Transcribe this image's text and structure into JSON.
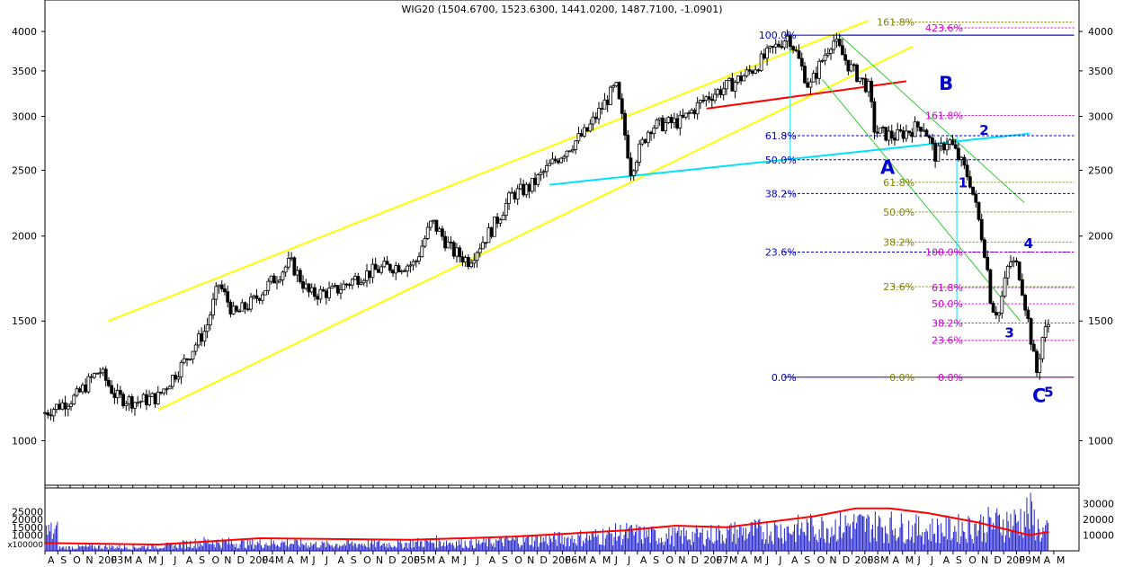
{
  "chart_data": {
    "type": "candlestick",
    "title": "WIG20 (1504.6700, 1523.6300, 1441.0200, 1487.7100, -1.0901)",
    "y_scale": "log",
    "ylim": [
      860,
      4450
    ],
    "y_ticks": [
      4000,
      3500,
      3000,
      2500,
      2000,
      1500,
      1000
    ],
    "x_range": [
      "2002-08-01",
      "2009-06-01"
    ],
    "month_labels": [
      "A",
      "S",
      "O",
      "N",
      "2003",
      "F",
      "M",
      "A",
      "M",
      "J",
      "J",
      "A",
      "S",
      "O",
      "N",
      "D",
      "2004",
      "F",
      "M",
      "A",
      "M",
      "J",
      "J",
      "A",
      "S",
      "O",
      "N",
      "D",
      "2005",
      "F",
      "M",
      "A",
      "M",
      "J",
      "J",
      "A",
      "S",
      "O",
      "N",
      "D",
      "2006",
      "F",
      "M",
      "A",
      "M",
      "J",
      "J",
      "A",
      "S",
      "O",
      "N",
      "D",
      "2007",
      "F",
      "M",
      "A",
      "M",
      "J",
      "J",
      "A",
      "S",
      "O",
      "N",
      "D",
      "2008",
      "F",
      "M",
      "A",
      "M",
      "J",
      "J",
      "A",
      "S",
      "O",
      "N",
      "D",
      "2009",
      "F",
      "M",
      "A",
      "M"
    ],
    "price_path": [
      [
        "2002-08-01",
        1100
      ],
      [
        "2002-10-15",
        1160
      ],
      [
        "2002-12-10",
        1270
      ],
      [
        "2003-01-20",
        1160
      ],
      [
        "2003-03-10",
        1140
      ],
      [
        "2003-05-01",
        1160
      ],
      [
        "2003-07-01",
        1300
      ],
      [
        "2003-08-25",
        1460
      ],
      [
        "2003-09-25",
        1700
      ],
      [
        "2003-11-01",
        1530
      ],
      [
        "2003-12-15",
        1600
      ],
      [
        "2004-02-01",
        1720
      ],
      [
        "2004-03-15",
        1830
      ],
      [
        "2004-05-01",
        1640
      ],
      [
        "2004-07-01",
        1660
      ],
      [
        "2004-09-01",
        1750
      ],
      [
        "2004-11-01",
        1800
      ],
      [
        "2005-01-10",
        1820
      ],
      [
        "2005-02-20",
        2100
      ],
      [
        "2005-04-10",
        1900
      ],
      [
        "2005-05-20",
        1840
      ],
      [
        "2005-07-15",
        2050
      ],
      [
        "2005-09-01",
        2300
      ],
      [
        "2005-10-15",
        2360
      ],
      [
        "2006-01-15",
        2700
      ],
      [
        "2006-03-01",
        2850
      ],
      [
        "2006-05-10",
        3320
      ],
      [
        "2006-06-15",
        2500
      ],
      [
        "2006-08-01",
        2900
      ],
      [
        "2006-10-15",
        2950
      ],
      [
        "2006-12-15",
        3200
      ],
      [
        "2007-02-15",
        3350
      ],
      [
        "2007-04-01",
        3500
      ],
      [
        "2007-07-01",
        3950
      ],
      [
        "2007-08-20",
        3300
      ],
      [
        "2007-10-15",
        3900
      ],
      [
        "2007-11-25",
        3550
      ],
      [
        "2008-01-10",
        3300
      ],
      [
        "2008-01-25",
        2850
      ],
      [
        "2008-03-15",
        2800
      ],
      [
        "2008-05-20",
        2920
      ],
      [
        "2008-06-20",
        2620
      ],
      [
        "2008-07-20",
        2780
      ],
      [
        "2008-09-10",
        2420
      ],
      [
        "2008-10-20",
        1850
      ],
      [
        "2008-11-01",
        1580
      ],
      [
        "2008-11-20",
        1540
      ],
      [
        "2008-12-15",
        1840
      ],
      [
        "2009-01-05",
        1800
      ],
      [
        "2009-02-18",
        1250
      ],
      [
        "2009-03-05",
        1420
      ],
      [
        "2009-03-20",
        1488
      ]
    ],
    "lines": [
      {
        "name": "channel-upper",
        "color": "#ffff00",
        "points": [
          [
            "2003-01-01",
            1500
          ],
          [
            "2008-01-10",
            4150
          ]
        ]
      },
      {
        "name": "channel-lower",
        "color": "#ffff00",
        "points": [
          [
            "2003-05-01",
            1110
          ],
          [
            "2008-04-25",
            3800
          ]
        ]
      },
      {
        "name": "support-line",
        "color": "#00e0ff",
        "points": [
          [
            "2005-12-01",
            2380
          ],
          [
            "2009-02-01",
            2830
          ]
        ]
      },
      {
        "name": "neckline",
        "color": "#ff0000",
        "points": [
          [
            "2006-12-15",
            3080
          ],
          [
            "2008-04-10",
            3380
          ]
        ]
      }
    ],
    "fib_sets": [
      {
        "name": "blue-retracement",
        "color": "#0000cc",
        "labels": [
          "100.0%",
          "61.8%",
          "50.0%",
          "38.2%",
          "23.6%",
          "0.0%"
        ],
        "values": [
          3950,
          2810,
          2590,
          2310,
          1895,
          1240
        ]
      },
      {
        "name": "olive-extension",
        "color": "#808000",
        "labels": [
          "161.8%",
          "61.8%",
          "50.0%",
          "38.2%",
          "23.6%",
          "0.0%"
        ],
        "values": [
          4130,
          2400,
          2170,
          1960,
          1685,
          1240
        ]
      },
      {
        "name": "magenta-extension",
        "color": "#cc00cc",
        "labels": [
          "423.6%",
          "161.8%",
          "100.0%",
          "61.8%",
          "50.0%",
          "38.2%",
          "23.6%",
          "0.0%"
        ],
        "values": [
          4050,
          3010,
          1895,
          1680,
          1590,
          1490,
          1405,
          1240
        ]
      }
    ],
    "wave_labels": [
      {
        "label": "A",
        "date": "2008-02-25",
        "value": 2470,
        "size": "big"
      },
      {
        "label": "B",
        "date": "2008-07-15",
        "value": 3280,
        "size": "big"
      },
      {
        "label": "C",
        "date": "2009-02-25",
        "value": 1140,
        "size": "big"
      },
      {
        "label": "5",
        "date": "2009-03-20",
        "value": 1160,
        "size": "small"
      },
      {
        "label": "1",
        "date": "2008-08-25",
        "value": 2360,
        "size": "small"
      },
      {
        "label": "2",
        "date": "2008-10-15",
        "value": 2820,
        "size": "small"
      },
      {
        "label": "3",
        "date": "2008-12-15",
        "value": 1420,
        "size": "small"
      },
      {
        "label": "4",
        "date": "2009-01-30",
        "value": 1920,
        "size": "small"
      }
    ],
    "volume": {
      "unit_label": "x100000",
      "y_ticks_left": [
        "25000",
        "20000",
        "15000",
        "10000"
      ],
      "y_ticks_right": [
        "30000",
        "20000",
        "10000"
      ],
      "ylim": [
        0,
        40000
      ],
      "avg_path": [
        [
          "2002-08-01",
          5000
        ],
        [
          "2003-05-01",
          4000
        ],
        [
          "2004-01-01",
          8000
        ],
        [
          "2005-01-01",
          7000
        ],
        [
          "2005-09-01",
          9000
        ],
        [
          "2006-06-01",
          13000
        ],
        [
          "2006-10-01",
          16000
        ],
        [
          "2007-02-01",
          15000
        ],
        [
          "2007-09-01",
          22000
        ],
        [
          "2007-12-10",
          27000
        ],
        [
          "2008-03-01",
          27000
        ],
        [
          "2008-06-01",
          24000
        ],
        [
          "2008-10-01",
          18000
        ],
        [
          "2009-02-01",
          10000
        ],
        [
          "2009-03-20",
          12000
        ]
      ],
      "bars": [
        [
          "2002-09",
          3000
        ],
        [
          "2002-12",
          4000
        ],
        [
          "2003-03",
          3500
        ],
        [
          "2003-06",
          5000
        ],
        [
          "2003-09",
          9000
        ],
        [
          "2003-12",
          7000
        ],
        [
          "2004-03",
          8000
        ],
        [
          "2004-06",
          6000
        ],
        [
          "2004-09",
          7000
        ],
        [
          "2004-12",
          6500
        ],
        [
          "2005-03",
          9000
        ],
        [
          "2005-06",
          7000
        ],
        [
          "2005-09",
          10000
        ],
        [
          "2005-12",
          11000
        ],
        [
          "2006-03",
          13000
        ],
        [
          "2006-06",
          17000
        ],
        [
          "2006-09",
          14000
        ],
        [
          "2006-12",
          15000
        ],
        [
          "2007-03",
          18000
        ],
        [
          "2007-06",
          20000
        ],
        [
          "2007-09",
          22000
        ],
        [
          "2007-12",
          25000
        ],
        [
          "2008-03",
          24000
        ],
        [
          "2008-06",
          20000
        ],
        [
          "2008-09",
          22000
        ],
        [
          "2008-11",
          26000
        ],
        [
          "2009-01",
          28000
        ],
        [
          "2009-02",
          36000
        ],
        [
          "2009-03",
          18000
        ]
      ]
    },
    "colors": {
      "candle": "#000000",
      "volume_bar": "#2222cc",
      "volume_avg": "#ff0000",
      "frame": "#000000",
      "green_trend": "#33cc33"
    }
  }
}
